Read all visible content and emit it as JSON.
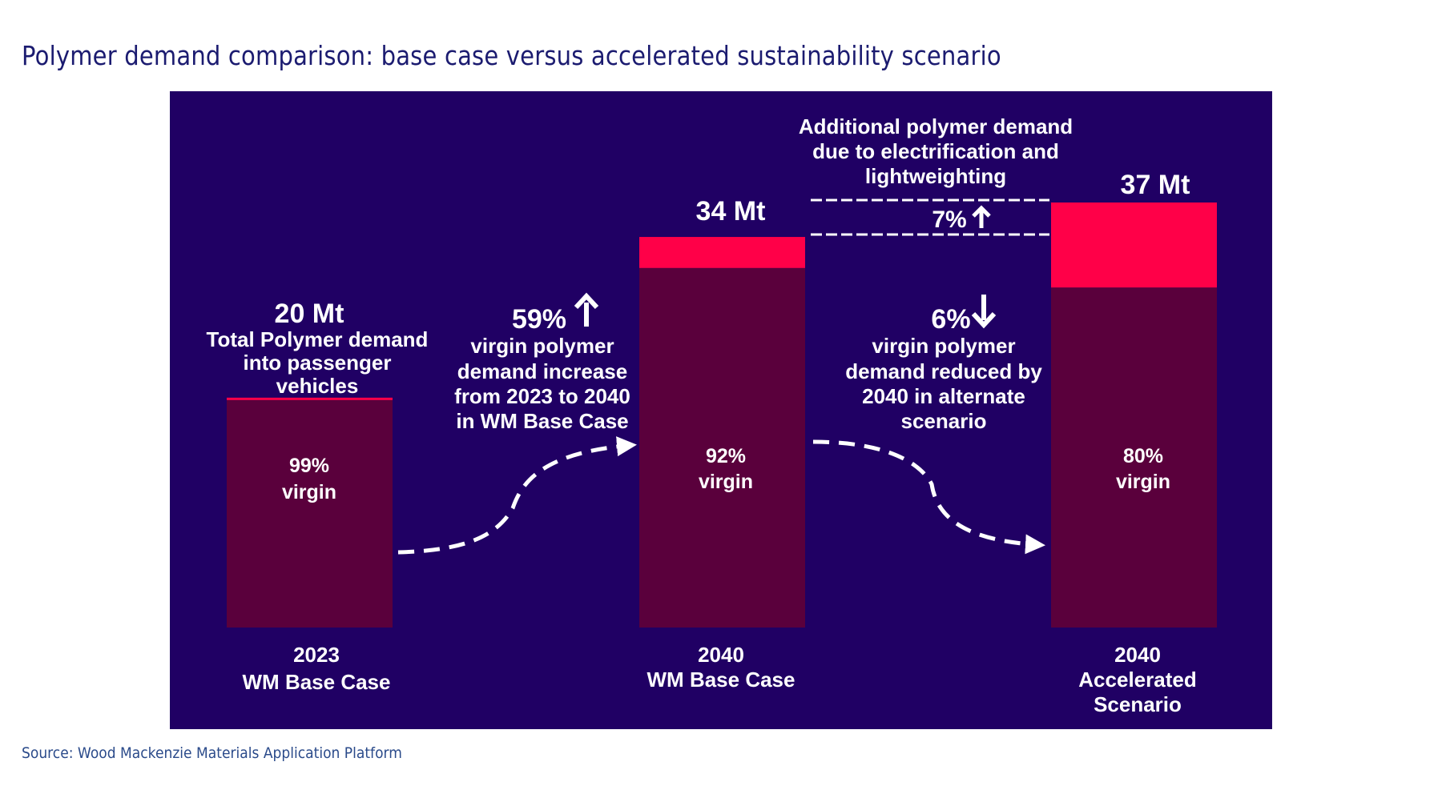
{
  "page": {
    "title": "Polymer demand comparison: base case versus accelerated sustainability scenario",
    "source": "Source: Wood Mackenzie Materials Application Platform"
  },
  "colors": {
    "panel_background": "#200064",
    "virgin": "#5a003c",
    "additional": "#ff0048",
    "text": "#ffffff",
    "title": "#1b1b70",
    "source": "#2a4a8a"
  },
  "chart_data": {
    "type": "bar",
    "stacked": true,
    "title": "Polymer demand comparison: base case versus accelerated sustainability scenario",
    "categories": [
      "2023 WM Base Case",
      "2040 WM Base Case",
      "2040 Accelerated Scenario"
    ],
    "category_labels": [
      [
        "2023",
        "WM Base Case"
      ],
      [
        "2040",
        "WM Base Case"
      ],
      [
        "2040",
        "Accelerated",
        "Scenario"
      ]
    ],
    "unit": "Mt",
    "totals": [
      20,
      34,
      37
    ],
    "total_labels": [
      "20 Mt",
      "34 Mt",
      "37 Mt"
    ],
    "virgin_share_pct": [
      99,
      92,
      80
    ],
    "segment_labels": [
      [
        "99%",
        "virgin"
      ],
      [
        "92%",
        "virgin"
      ],
      [
        "80%",
        "virgin"
      ]
    ],
    "series": [
      {
        "name": "Virgin polymer",
        "values": [
          19.8,
          31.3,
          29.6
        ]
      },
      {
        "name": "Additional / non-virgin polymer",
        "values": [
          0.2,
          2.7,
          7.4
        ]
      }
    ],
    "ylim": [
      0,
      37
    ],
    "grid": false,
    "annotations": {
      "bar1_description": [
        "Total Polymer demand",
        "into passenger",
        "vehicles"
      ],
      "increase": {
        "value": "59%",
        "direction": "up",
        "lines": [
          "virgin polymer",
          "demand increase",
          "from 2023 to 2040",
          "in WM Base Case"
        ]
      },
      "decrease": {
        "value": "6%",
        "direction": "down",
        "lines": [
          "virgin polymer",
          "demand reduced by",
          "2040 in alternate",
          "scenario"
        ]
      },
      "additional": {
        "lines": [
          "Additional polymer demand",
          "due to electrification and",
          "lightweighting"
        ],
        "value": "7%",
        "direction": "up"
      }
    }
  }
}
